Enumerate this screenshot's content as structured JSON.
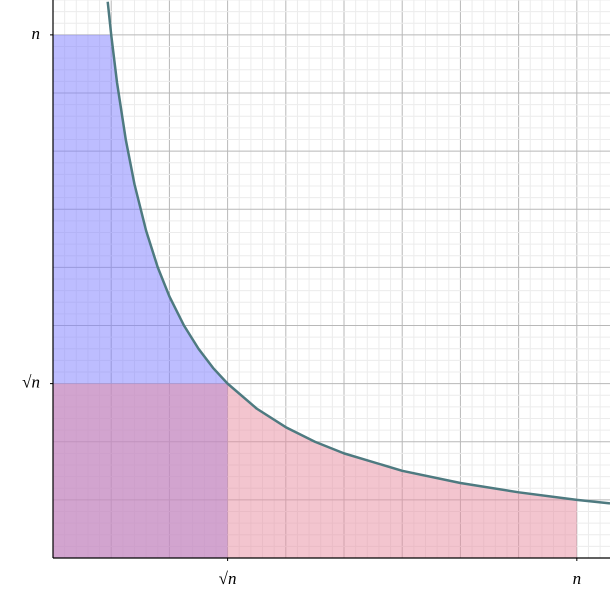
{
  "chart_data": {
    "type": "line",
    "x": [
      0.94,
      1,
      1.1,
      1.25,
      1.4,
      1.6,
      1.8,
      2,
      2.25,
      2.5,
      2.75,
      3,
      3.5,
      4,
      4.5,
      5,
      6,
      7,
      8,
      9,
      9.57
    ],
    "series": [
      {
        "color": "#4e7a80",
        "values": [
          9.57,
          9,
          8.18,
          7.2,
          6.43,
          5.63,
          5,
          4.5,
          4,
          3.6,
          3.27,
          3,
          2.57,
          2.25,
          2,
          1.8,
          1.5,
          1.29,
          1.13,
          1,
          0.94
        ]
      }
    ],
    "region_colors": [
      "#7b7bff",
      "#e88ca0"
    ],
    "xlim": [
      0,
      9.57
    ],
    "ylim": [
      0,
      9.6
    ],
    "xticks": [
      {
        "value": 3,
        "label": "√n"
      },
      {
        "value": 9,
        "label": "n"
      }
    ],
    "yticks": [
      {
        "value": 3,
        "label": "√n"
      },
      {
        "value": 9,
        "label": "n"
      }
    ],
    "grid": true
  }
}
